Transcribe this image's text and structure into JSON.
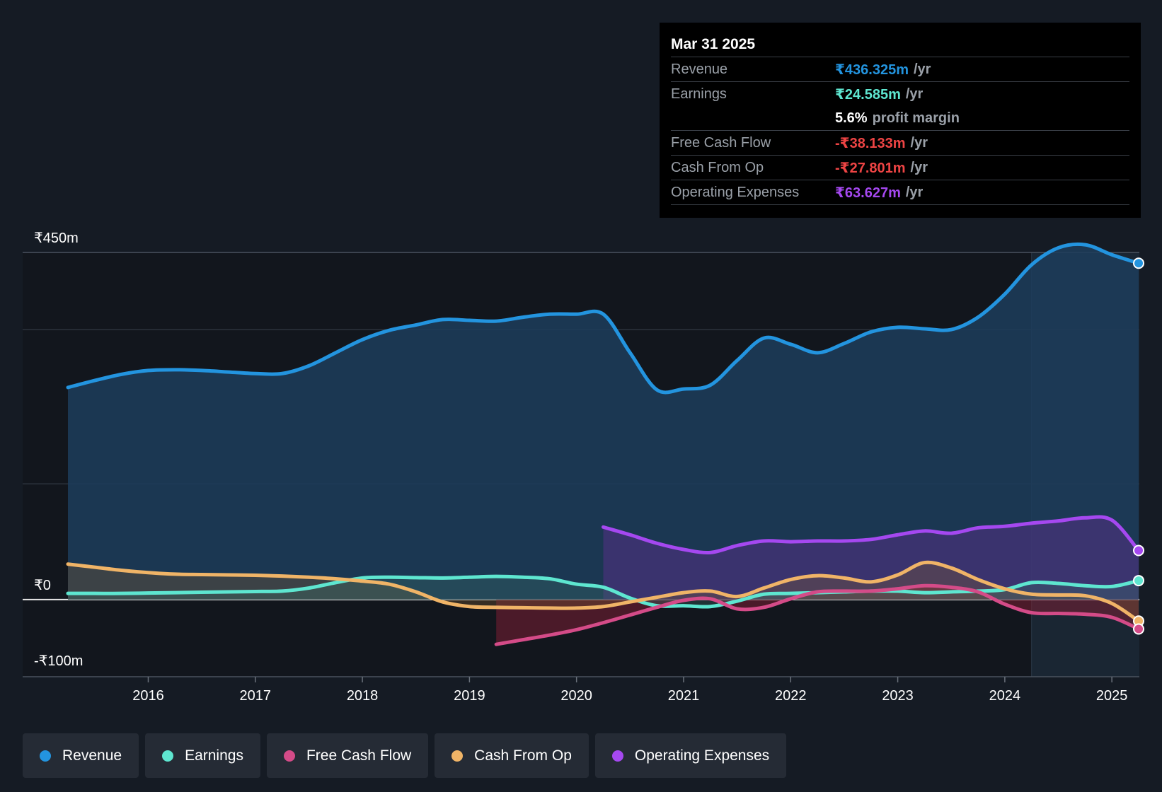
{
  "chart_data": {
    "type": "area",
    "y_axis": {
      "top_label": "₹450m",
      "zero_label": "₹0",
      "bottom_label": "-₹100m",
      "ylim": [
        -100,
        450
      ]
    },
    "x_ticks": [
      "2016",
      "2017",
      "2018",
      "2019",
      "2020",
      "2021",
      "2022",
      "2023",
      "2024",
      "2025"
    ],
    "xlim": [
      2015.25,
      2025.25
    ],
    "highlight_start": 2024.25,
    "series": [
      {
        "name": "Revenue",
        "color": "#2394df",
        "x": [
          2015.25,
          2015.5,
          2015.75,
          2016.0,
          2016.25,
          2016.5,
          2016.75,
          2017.0,
          2017.25,
          2017.5,
          2017.75,
          2018.0,
          2018.25,
          2018.5,
          2018.75,
          2019.0,
          2019.25,
          2019.5,
          2019.75,
          2020.0,
          2020.25,
          2020.5,
          2020.75,
          2021.0,
          2021.25,
          2021.5,
          2021.75,
          2022.0,
          2022.25,
          2022.5,
          2022.75,
          2023.0,
          2023.25,
          2023.5,
          2023.75,
          2024.0,
          2024.25,
          2024.5,
          2024.75,
          2025.0,
          2025.25
        ],
        "values": [
          275,
          284,
          292,
          297,
          298,
          297,
          295,
          293,
          293,
          303,
          320,
          337,
          349,
          356,
          363,
          362,
          361,
          366,
          370,
          370,
          370,
          320,
          272,
          273,
          278,
          310,
          339,
          331,
          320,
          332,
          347,
          353,
          351,
          350,
          366,
          396,
          434,
          456,
          460,
          447,
          436
        ]
      },
      {
        "name": "Earnings",
        "color": "#5ee6d0",
        "x": [
          2015.25,
          2015.5,
          2015.75,
          2016.0,
          2016.25,
          2016.5,
          2016.75,
          2017.0,
          2017.25,
          2017.5,
          2017.75,
          2018.0,
          2018.25,
          2018.5,
          2018.75,
          2019.0,
          2019.25,
          2019.5,
          2019.75,
          2020.0,
          2020.25,
          2020.5,
          2020.75,
          2021.0,
          2021.25,
          2021.5,
          2021.75,
          2022.0,
          2022.25,
          2022.5,
          2022.75,
          2023.0,
          2023.25,
          2023.5,
          2023.75,
          2024.0,
          2024.25,
          2024.5,
          2024.75,
          2025.0,
          2025.25
        ],
        "values": [
          8,
          8,
          8,
          8.5,
          9,
          9.5,
          10,
          10.5,
          11,
          15,
          22,
          28,
          29,
          28.5,
          28,
          29,
          30,
          29,
          27,
          20,
          16,
          2,
          -8,
          -8,
          -9,
          -2,
          7,
          8,
          9,
          10,
          11,
          11,
          9,
          10,
          11,
          13,
          22,
          21,
          18,
          17,
          24.6
        ]
      },
      {
        "name": "Free Cash Flow",
        "color": "#d44b88",
        "x": [
          2019.25,
          2019.5,
          2019.75,
          2020.0,
          2020.25,
          2020.5,
          2020.75,
          2021.0,
          2021.25,
          2021.5,
          2021.75,
          2022.0,
          2022.25,
          2022.5,
          2022.75,
          2023.0,
          2023.25,
          2023.5,
          2023.75,
          2024.0,
          2024.25,
          2024.5,
          2024.75,
          2025.0,
          2025.25
        ],
        "values": [
          -58,
          -52,
          -46,
          -39,
          -30,
          -20,
          -10,
          -1,
          1,
          -12,
          -10,
          1,
          10,
          11,
          11,
          14,
          18,
          16,
          10,
          -6,
          -17,
          -18,
          -19,
          -23,
          -38.1
        ]
      },
      {
        "name": "Cash From Op",
        "color": "#f0b467",
        "x": [
          2015.25,
          2015.5,
          2015.75,
          2016.0,
          2016.25,
          2016.5,
          2016.75,
          2017.0,
          2017.25,
          2017.5,
          2017.75,
          2018.0,
          2018.25,
          2018.5,
          2018.75,
          2019.0,
          2019.25,
          2019.5,
          2019.75,
          2020.0,
          2020.25,
          2020.5,
          2020.75,
          2021.0,
          2021.25,
          2021.5,
          2021.75,
          2022.0,
          2022.25,
          2022.5,
          2022.75,
          2023.0,
          2023.25,
          2023.5,
          2023.75,
          2024.0,
          2024.25,
          2024.5,
          2024.75,
          2025.0,
          2025.25
        ],
        "values": [
          46,
          42,
          38,
          35,
          33,
          32.5,
          32,
          31.5,
          30.5,
          29,
          27,
          24,
          20,
          10,
          -3,
          -9,
          -10,
          -10.5,
          -11,
          -11,
          -9,
          -3,
          3,
          9,
          11,
          4,
          15,
          26,
          31,
          28,
          23,
          32,
          48,
          41,
          26,
          14,
          7,
          6,
          5,
          -5,
          -27.8
        ]
      },
      {
        "name": "Operating Expenses",
        "color": "#a548f0",
        "x": [
          2020.25,
          2020.5,
          2020.75,
          2021.0,
          2021.25,
          2021.5,
          2021.75,
          2022.0,
          2022.25,
          2022.5,
          2022.75,
          2023.0,
          2023.25,
          2023.5,
          2023.75,
          2024.0,
          2024.25,
          2024.5,
          2024.75,
          2025.0,
          2025.25
        ],
        "values": [
          94,
          84,
          73,
          65,
          61,
          70,
          76,
          75,
          76,
          76,
          78,
          84,
          89,
          86,
          93,
          95,
          99,
          102,
          106,
          103,
          63.6
        ]
      }
    ]
  },
  "tooltip": {
    "date": "Mar 31 2025",
    "revenue_label": "Revenue",
    "revenue_value": "₹436.325m",
    "revenue_unit": "/yr",
    "earnings_label": "Earnings",
    "earnings_value": "₹24.585m",
    "earnings_unit": "/yr",
    "margin_value": "5.6%",
    "margin_text": "profit margin",
    "fcf_label": "Free Cash Flow",
    "fcf_value": "-₹38.133m",
    "fcf_unit": "/yr",
    "cfo_label": "Cash From Op",
    "cfo_value": "-₹27.801m",
    "cfo_unit": "/yr",
    "opex_label": "Operating Expenses",
    "opex_value": "₹63.627m",
    "opex_unit": "/yr"
  },
  "colors": {
    "revenue": "#2394df",
    "earnings": "#5ee6d0",
    "fcf": "#d44b88",
    "cfo": "#f0b467",
    "opex": "#a548f0",
    "negative": "#ee4444"
  },
  "legend": [
    {
      "label": "Revenue",
      "color": "#2394df"
    },
    {
      "label": "Earnings",
      "color": "#5ee6d0"
    },
    {
      "label": "Free Cash Flow",
      "color": "#d44b88"
    },
    {
      "label": "Cash From Op",
      "color": "#f0b467"
    },
    {
      "label": "Operating Expenses",
      "color": "#a548f0"
    }
  ]
}
